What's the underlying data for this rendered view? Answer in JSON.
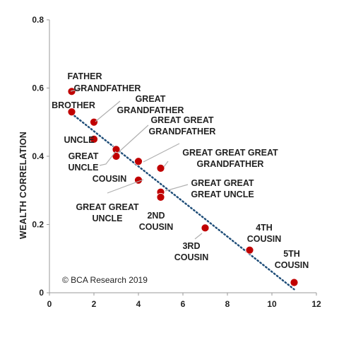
{
  "chart_data": {
    "type": "scatter",
    "ylabel": "WEALTH CORRELATION",
    "xlabel": "",
    "xlim": [
      0,
      12
    ],
    "ylim": [
      0,
      0.8
    ],
    "x_ticks": [
      "0",
      "2",
      "4",
      "6",
      "8",
      "10",
      "12"
    ],
    "y_ticks": [
      "0",
      "0.2",
      "0.4",
      "0.6",
      "0.8"
    ],
    "marker_color": "#c00000",
    "trend_color": "#1f4e79",
    "copyright": "© BCA Research 2019",
    "points": [
      {
        "label": "FATHER",
        "x": 1,
        "y": 0.59
      },
      {
        "label": "BROTHER",
        "x": 1,
        "y": 0.53
      },
      {
        "label": "GRANDFATHER",
        "x": 2,
        "y": 0.5
      },
      {
        "label": "UNCLE",
        "x": 2,
        "y": 0.45
      },
      {
        "label": "GREAT GRANDFATHER",
        "x": 3,
        "y": 0.42
      },
      {
        "label": "GREAT UNCLE",
        "x": 3,
        "y": 0.4
      },
      {
        "label": "GREAT GREAT GRANDFATHER",
        "x": 4,
        "y": 0.385
      },
      {
        "label": "COUSIN",
        "x": 4,
        "y": 0.33
      },
      {
        "label": "GREAT GREAT GREAT GRANDFATHER",
        "x": 5,
        "y": 0.365
      },
      {
        "label": "GREAT GREAT GREAT UNCLE",
        "x": 5,
        "y": 0.295
      },
      {
        "label": "GREAT GREAT UNCLE",
        "x": 5,
        "y": 0.28
      },
      {
        "label": "2ND COUSIN",
        "x": 5,
        "y": 0.28
      },
      {
        "label": "3RD COUSIN",
        "x": 7,
        "y": 0.19
      },
      {
        "label": "4TH COUSIN",
        "x": 9,
        "y": 0.125
      },
      {
        "label": "5TH COUSIN",
        "x": 11,
        "y": 0.03
      }
    ],
    "trendline": {
      "x": [
        1,
        11
      ],
      "y": [
        0.525,
        0.01
      ]
    }
  }
}
